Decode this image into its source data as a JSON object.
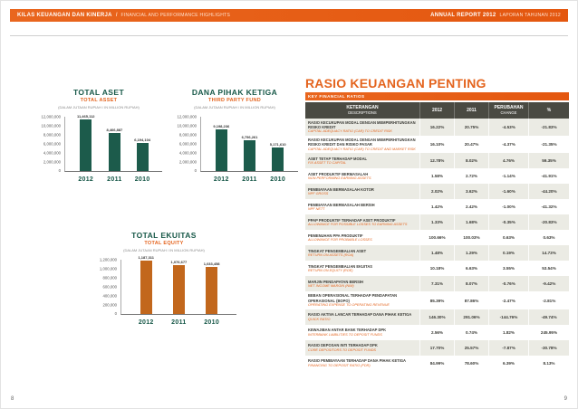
{
  "page": {
    "header": {
      "left_title": "KILAS KEUANGAN DAN KINERJA",
      "left_separator": "/",
      "left_subtitle": "FINANCIAL AND PERFORMANCE HIGHLIGHTS",
      "right_title": "ANNUAL REPORT 2012",
      "right_subtitle": "LAPORAN TAHUNAN 2012"
    },
    "footer": {
      "page_left": "8",
      "page_right": "9"
    }
  },
  "colors": {
    "accent_orange": "#e4641e",
    "teal": "#175848",
    "bar_teal": "#1c5b4b",
    "bar_orange": "#c2671c",
    "table_header": "#4a4a42",
    "row_alt": "#ebebe4"
  },
  "chart_data": [
    {
      "type": "bar",
      "title": "TOTAL ASET",
      "subtitle": "TOTAL ASSET",
      "note": "(DALAM JUTAAN RUPIAH / IN MILLION RUPIAH)",
      "categories": [
        "2012",
        "2011",
        "2010"
      ],
      "values": [
        11465112,
        8466887,
        6194104
      ],
      "value_labels": [
        "11,465,112",
        "8,466,887",
        "6,194,104"
      ],
      "ylim": [
        0,
        12000000
      ],
      "yticks": [
        "12,000,000",
        "10,000,000",
        "8,000,000",
        "6,000,000",
        "4,000,000",
        "2,000,000"
      ],
      "zero_label": "0",
      "bar_color": "#1c5b4b",
      "legend": "none",
      "grid": "off"
    },
    {
      "type": "bar",
      "title": "DANA PIHAK KETIGA",
      "subtitle": "THIRD PARTY FUND",
      "note": "(DALAM JUTAAN RUPIAH / IN MILLION RUPIAH)",
      "categories": [
        "2012",
        "2011",
        "2010"
      ],
      "values": [
        9198236,
        6756261,
        5171610
      ],
      "value_labels": [
        "9,198,236",
        "6,756,261",
        "5,171,610"
      ],
      "ylim": [
        0,
        12000000
      ],
      "yticks": [
        "12,000,000",
        "10,000,000",
        "8,000,000",
        "6,000,000",
        "4,000,000",
        "2,000,000"
      ],
      "zero_label": "0",
      "bar_color": "#1c5b4b",
      "legend": "none",
      "grid": "off"
    },
    {
      "type": "bar",
      "title": "TOTAL EKUITAS",
      "subtitle": "TOTAL EQUITY",
      "note": "(DALAM JUTAAN RUPIAH / IN MILLION RUPIAH)",
      "categories": [
        "2012",
        "2011",
        "2010"
      ],
      "values": [
        1187311,
        1076677,
        1033458
      ],
      "value_labels": [
        "1,187,311",
        "1,076,677",
        "1,033,458"
      ],
      "ylim": [
        0,
        1200000
      ],
      "yticks": [
        "1,200,000",
        "1,000,000",
        "800,000",
        "600,000",
        "400,000",
        "200,000"
      ],
      "zero_label": "0",
      "bar_color": "#c2671c",
      "legend": "none",
      "grid": "off"
    }
  ],
  "ratios_table": {
    "title": "RASIO KEUANGAN PENTING",
    "subtitle": "KEY FINANCIAL RATIOS",
    "columns": {
      "description_line1": "KETERANGAN",
      "description_line2": "DESCRIPTIONS",
      "col_2012": "2012",
      "col_2011": "2011",
      "change_line1": "PERUBAHAN",
      "change_line2": "CHANGE",
      "percent": "%"
    },
    "rows": [
      {
        "desc_id": "RASIO KECUKUPAN MODAL DENGAN MEMPERHITUNGKAN RISIKO KREDIT",
        "desc_en": "CAPITAL ADEQUACY RATIO (CAR) TO CREDIT RISK",
        "y2012": "16.22%",
        "y2011": "20.75%",
        "change": "-4.53%",
        "pct": "-21.83%"
      },
      {
        "desc_id": "RASIO KECUKUPAN MODAL DENGAN MEMPERHITUNGKAN RISIKO KREDIT DAN RISIKO PASAR",
        "desc_en": "CAPITAL ADEQUACY RATIO (CAR) TO CREDIT AND MARKET RISK",
        "y2012": "16.10%",
        "y2011": "20.47%",
        "change": "-4.37%",
        "pct": "-21.35%"
      },
      {
        "desc_id": "ASET TETAP TERHADAP MODAL",
        "desc_en": "FIX ASSET TO CAPITAL",
        "y2012": "12.78%",
        "y2011": "8.02%",
        "change": "4.76%",
        "pct": "59.35%"
      },
      {
        "desc_id": "ASET PRODUKTIF BERMASALAH",
        "desc_en": "NON PERFORMING EARNING ASSETS",
        "y2012": "1.58%",
        "y2011": "2.72%",
        "change": "-1.14%",
        "pct": "-41.91%"
      },
      {
        "desc_id": "PEMBIAYAAN BERMASALAH KOTOR",
        "desc_en": "NPF GROSS",
        "y2012": "2.02%",
        "y2011": "3.62%",
        "change": "-1.60%",
        "pct": "-44.20%"
      },
      {
        "desc_id": "PEMBIAYAAN BERMASALAH BERSIH",
        "desc_en": "NPF NETT",
        "y2012": "1.42%",
        "y2011": "2.42%",
        "change": "-1.00%",
        "pct": "-41.32%"
      },
      {
        "desc_id": "PPAP PRODUKTIF TERHADAP ASET PRODUKTIF",
        "desc_en": "ALLOWANCE FOR POSSIBLE LOSSES TO EARNING ASSETS",
        "y2012": "1.33%",
        "y2011": "1.68%",
        "change": "-0.35%",
        "pct": "-20.83%"
      },
      {
        "desc_id": "PEMENUHAN PPA PRODUKTIF",
        "desc_en": "ALLOWANCE FOR PROBABLE LOSSES",
        "y2012": "100.66%",
        "y2011": "100.03%",
        "change": "0.63%",
        "pct": "0.63%"
      },
      {
        "desc_id": "TINGKAT PENGEMBALIAN ASET",
        "desc_en": "RETURN ON ASSETS (ROA)",
        "y2012": "1.48%",
        "y2011": "1.29%",
        "change": "0.19%",
        "pct": "14.73%"
      },
      {
        "desc_id": "TINGKAT PENGEMBALIAN EKUITAS",
        "desc_en": "RETURN ON EQUITY (ROE)",
        "y2012": "10.18%",
        "y2011": "6.63%",
        "change": "3.55%",
        "pct": "53.54%"
      },
      {
        "desc_id": "MARJIN PENDAPATAN BERSIH",
        "desc_en": "NET INCOME MARGIN (NIM)",
        "y2012": "7.31%",
        "y2011": "8.07%",
        "change": "-0.76%",
        "pct": "-9.42%"
      },
      {
        "desc_id": "BEBAN OPERASIONAL TERHADAP PENDAPATAN OPERASIONAL (BOPO)",
        "desc_en": "OPERATING EXPENSE TO OPERATING REVENUE",
        "y2012": "85.39%",
        "y2011": "87.86%",
        "change": "-2.47%",
        "pct": "-2.81%"
      },
      {
        "desc_id": "RASIO AKTIVA LANCAR TERHADAP DANA PIHAK KETIGA",
        "desc_en": "QUICK RATIO",
        "y2012": "146.30%",
        "y2011": "291.06%",
        "change": "-144.76%",
        "pct": "-49.74%"
      },
      {
        "desc_id": "KEWAJIBAN ANTAR BANK TERHADAP DPK",
        "desc_en": "INTERBANK LIABILITIES TO DEPOSIT FUNDS",
        "y2012": "2.56%",
        "y2011": "0.74%",
        "change": "1.82%",
        "pct": "245.95%"
      },
      {
        "desc_id": "RASIO DEPOSAN INTI TERHADAP DPK",
        "desc_en": "CORE DEPOSITORS TO DEPOSIT FUNDS",
        "y2012": "17.70%",
        "y2011": "25.57%",
        "change": "-7.87%",
        "pct": "-30.78%"
      },
      {
        "desc_id": "RASIO PEMBIAYAAN TERHADAP DANA PIHAK KETIGA",
        "desc_en": "FINANCING TO DEPOSIT RATIO (FDR)",
        "y2012": "84.99%",
        "y2011": "78.60%",
        "change": "6.39%",
        "pct": "8.13%"
      }
    ]
  }
}
